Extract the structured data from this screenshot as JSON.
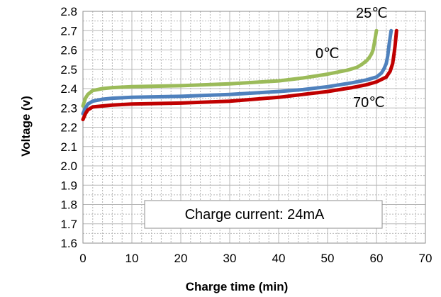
{
  "chart_data": {
    "type": "line",
    "xlabel": "Charge time (min)",
    "ylabel": "Voltage (v)",
    "xlim": [
      0,
      70
    ],
    "ylim": [
      1.6,
      2.8
    ],
    "x_ticks": [
      "0",
      "10",
      "20",
      "30",
      "40",
      "50",
      "60",
      "70"
    ],
    "y_ticks": [
      "1.6",
      "1.7",
      "1.8",
      "1.9",
      "2.0",
      "2.1",
      "2.2",
      "2.3",
      "2.4",
      "2.5",
      "2.6",
      "2.7",
      "2.8"
    ],
    "grid": true,
    "annotation_box": "Charge current: 24mA",
    "series": [
      {
        "name": "0℃",
        "color": "#9BBB59",
        "x": [
          0,
          0.5,
          1,
          2,
          4,
          6,
          10,
          20,
          30,
          40,
          45,
          50,
          54,
          56,
          57,
          58,
          58.5,
          59,
          59.3,
          59.6,
          60
        ],
        "y": [
          2.31,
          2.35,
          2.37,
          2.39,
          2.4,
          2.405,
          2.41,
          2.415,
          2.425,
          2.44,
          2.455,
          2.475,
          2.495,
          2.51,
          2.525,
          2.545,
          2.56,
          2.58,
          2.6,
          2.64,
          2.7
        ]
      },
      {
        "name": "25℃",
        "color": "#4F81BD",
        "x": [
          0,
          0.5,
          1,
          2,
          4,
          6,
          10,
          20,
          30,
          40,
          45,
          50,
          55,
          58,
          60,
          61,
          61.5,
          62,
          62.3,
          62.6,
          63
        ],
        "y": [
          2.27,
          2.3,
          2.32,
          2.335,
          2.345,
          2.35,
          2.355,
          2.36,
          2.37,
          2.385,
          2.395,
          2.41,
          2.43,
          2.445,
          2.46,
          2.48,
          2.5,
          2.53,
          2.57,
          2.63,
          2.7
        ]
      },
      {
        "name": "70℃",
        "color": "#C00000",
        "x": [
          0,
          0.5,
          1,
          2,
          4,
          6,
          10,
          20,
          30,
          40,
          45,
          50,
          55,
          58,
          60,
          62,
          62.8,
          63.3,
          63.6,
          63.8,
          64.1
        ],
        "y": [
          2.24,
          2.27,
          2.29,
          2.305,
          2.31,
          2.315,
          2.32,
          2.325,
          2.335,
          2.355,
          2.37,
          2.385,
          2.405,
          2.42,
          2.435,
          2.46,
          2.49,
          2.53,
          2.58,
          2.62,
          2.7
        ]
      }
    ]
  }
}
